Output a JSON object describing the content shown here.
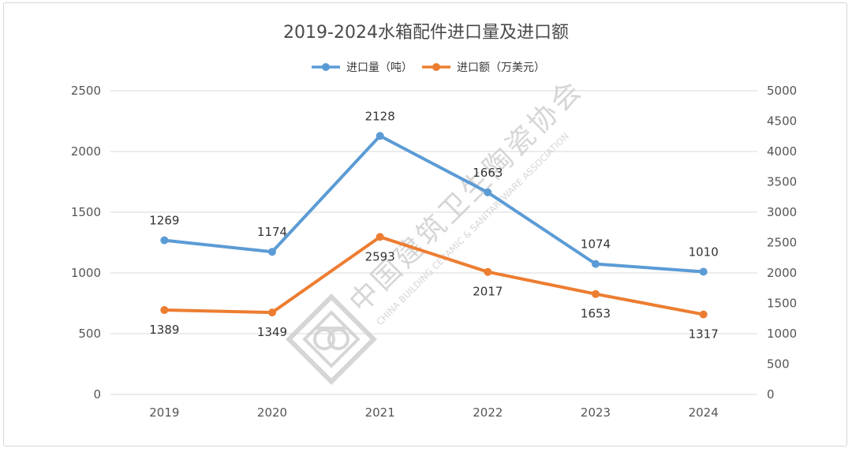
{
  "chart_data": {
    "type": "line",
    "title": "2019-2024水箱配件进口量及进口额",
    "categories": [
      "2019",
      "2020",
      "2021",
      "2022",
      "2023",
      "2024"
    ],
    "series": [
      {
        "name": "进口量（吨）",
        "axis": "left",
        "color": "#5b9bd5",
        "values": [
          1269,
          1174,
          2128,
          1663,
          1074,
          1010
        ],
        "labels": [
          "1269",
          "1174",
          "2128",
          "1663",
          "1074",
          "1010"
        ]
      },
      {
        "name": "进口额（万美元）",
        "axis": "right",
        "color": "#ed7d31",
        "values": [
          1389,
          1349,
          2593,
          2017,
          1653,
          1317
        ],
        "labels": [
          "1389",
          "1349",
          "2593",
          "2017",
          "1653",
          "1317"
        ]
      }
    ],
    "y_left": {
      "min": 0,
      "max": 2500,
      "step": 500,
      "ticks": [
        "0",
        "500",
        "1000",
        "1500",
        "2000",
        "2500"
      ]
    },
    "y_right": {
      "min": 0,
      "max": 5000,
      "step": 500,
      "ticks": [
        "0",
        "500",
        "1000",
        "1500",
        "2000",
        "2500",
        "3000",
        "3500",
        "4000",
        "4500",
        "5000"
      ]
    },
    "grid": true,
    "legend_position": "top-center"
  },
  "watermark": {
    "cn": "中国建筑卫生陶瓷协会",
    "en": "CHINA BUILDING CERAMIC & SANITARYWARE ASSOCIATION"
  }
}
